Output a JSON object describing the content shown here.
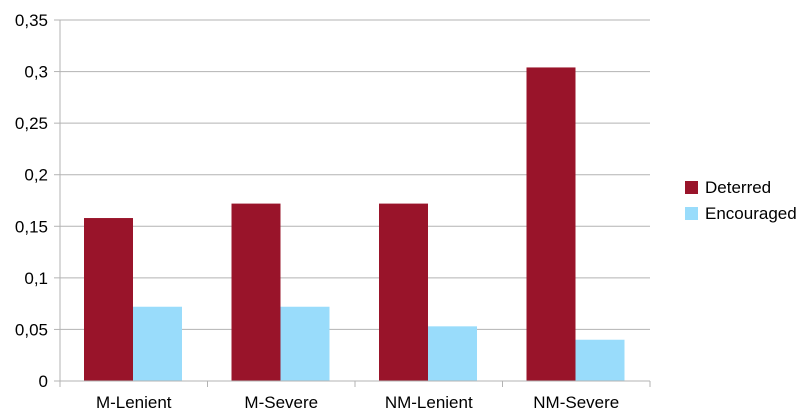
{
  "chart_data": {
    "type": "bar",
    "categories": [
      "M-Lenient",
      "M-Severe",
      "NM-Lenient",
      "NM-Severe"
    ],
    "series": [
      {
        "name": "Deterred",
        "values": [
          0.158,
          0.172,
          0.172,
          0.304
        ],
        "color": "#99142a"
      },
      {
        "name": "Encouraged",
        "values": [
          0.072,
          0.072,
          0.053,
          0.04
        ],
        "color": "#99dcfb"
      }
    ],
    "yticks": [
      "0",
      "0,05",
      "0,1",
      "0,15",
      "0,2",
      "0,25",
      "0,3",
      "0,35"
    ],
    "ylim": [
      0,
      0.35
    ],
    "title": "",
    "xlabel": "",
    "ylabel": "",
    "grid": true,
    "legend_position": "right"
  }
}
